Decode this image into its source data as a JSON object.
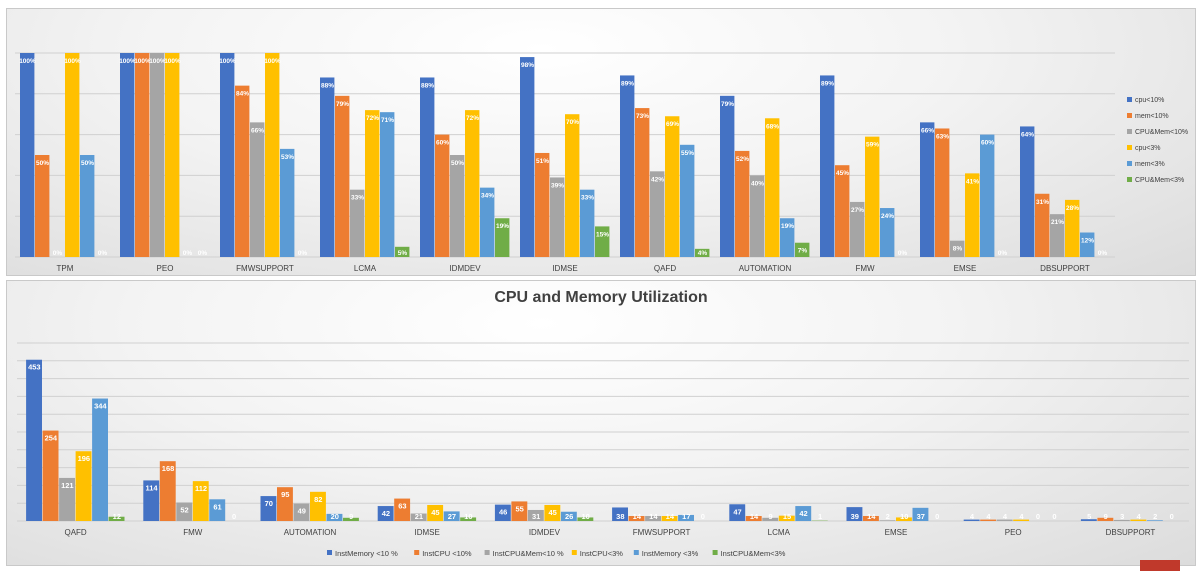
{
  "chart_data": [
    {
      "type": "bar",
      "title": "",
      "categories": [
        "TPM",
        "PEO",
        "FMWSUPPORT",
        "LCMA",
        "IDMDEV",
        "IDMSE",
        "QAFD",
        "AUTOMATION",
        "FMW",
        "EMSE",
        "DBSUPPORT"
      ],
      "ylim": [
        0,
        100
      ],
      "grid": true,
      "legend_position": "right",
      "value_suffix": "%",
      "series": [
        {
          "name": "cpu<10%",
          "color": "#4472C4",
          "values": [
            100,
            100,
            100,
            88,
            88,
            98,
            89,
            79,
            89,
            66,
            64
          ]
        },
        {
          "name": "mem<10%",
          "color": "#ED7D31",
          "values": [
            50,
            100,
            84,
            79,
            60,
            51,
            73,
            52,
            45,
            63,
            31
          ]
        },
        {
          "name": "CPU&Mem<10%",
          "color": "#A5A5A5",
          "values": [
            0,
            100,
            66,
            33,
            50,
            39,
            42,
            40,
            27,
            8,
            21
          ]
        },
        {
          "name": "cpu<3%",
          "color": "#FFC000",
          "values": [
            100,
            100,
            100,
            72,
            72,
            70,
            69,
            68,
            59,
            41,
            28
          ]
        },
        {
          "name": "mem<3%",
          "color": "#5B9BD5",
          "values": [
            50,
            0,
            53,
            71,
            34,
            33,
            55,
            19,
            24,
            60,
            12
          ]
        },
        {
          "name": "CPU&Mem<3%",
          "color": "#70AD47",
          "values": [
            0,
            0,
            0,
            5,
            19,
            15,
            4,
            7,
            0,
            0,
            0
          ]
        }
      ]
    },
    {
      "type": "bar",
      "title": "CPU and Memory Utilization",
      "categories": [
        "QAFD",
        "FMW",
        "AUTOMATION",
        "IDMSE",
        "IDMDEV",
        "FMWSUPPORT",
        "LCMA",
        "EMSE",
        "PEO",
        "DBSUPPORT"
      ],
      "ylim": [
        0,
        500
      ],
      "grid": true,
      "legend_position": "bottom",
      "series": [
        {
          "name": "InstMemory <10 %",
          "color": "#4472C4",
          "values": [
            453,
            114,
            70,
            42,
            46,
            38,
            47,
            39,
            4,
            5
          ]
        },
        {
          "name": "InstCPU <10%",
          "color": "#ED7D31",
          "values": [
            254,
            168,
            95,
            63,
            55,
            14,
            14,
            14,
            4,
            9
          ]
        },
        {
          "name": "InstCPU&Mem<10 %",
          "color": "#A5A5A5",
          "values": [
            121,
            52,
            49,
            21,
            31,
            14,
            9,
            2,
            4,
            3
          ]
        },
        {
          "name": "InstCPU<3%",
          "color": "#FFC000",
          "values": [
            196,
            112,
            82,
            45,
            45,
            14,
            15,
            10,
            4,
            4
          ]
        },
        {
          "name": "InstMemory <3%",
          "color": "#5B9BD5",
          "values": [
            344,
            61,
            20,
            27,
            26,
            17,
            42,
            37,
            0,
            2
          ]
        },
        {
          "name": "InstCPU&Mem<3%",
          "color": "#70AD47",
          "values": [
            12,
            0,
            9,
            10,
            10,
            0,
            1,
            0,
            0,
            0
          ]
        }
      ]
    }
  ]
}
